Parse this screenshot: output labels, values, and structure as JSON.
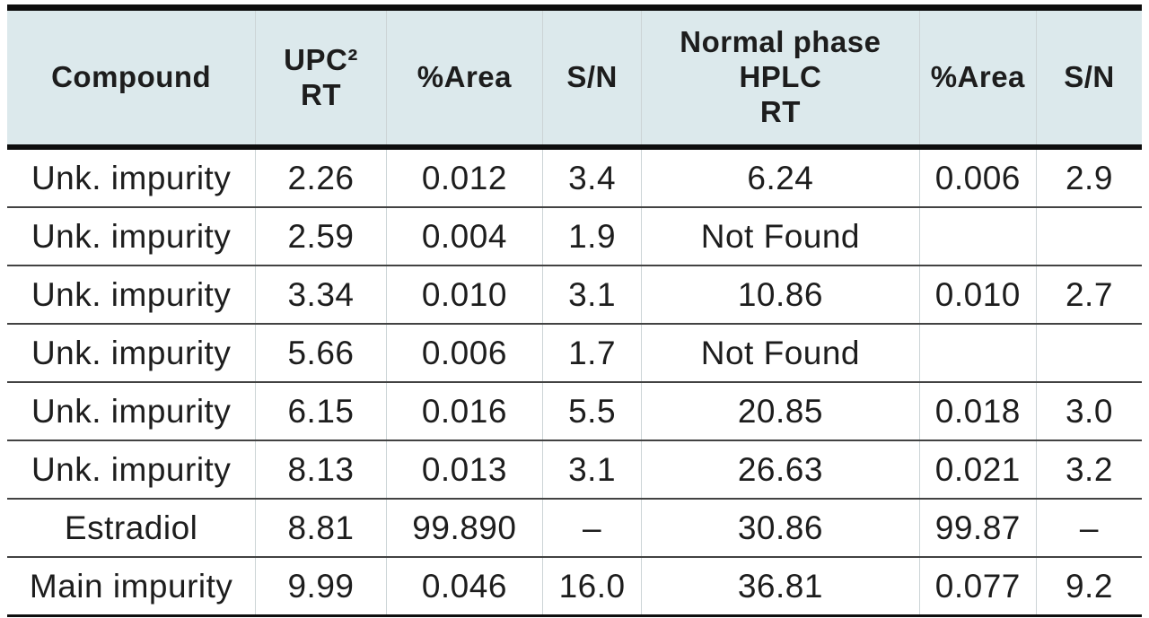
{
  "table": {
    "columns": [
      {
        "id": "compound",
        "label": "Compound"
      },
      {
        "id": "upc2-rt",
        "label": "UPC²\nRT"
      },
      {
        "id": "upc2-area",
        "label": "%Area"
      },
      {
        "id": "upc2-sn",
        "label": "S/N"
      },
      {
        "id": "hplc-rt",
        "label": "Normal phase\nHPLC\nRT"
      },
      {
        "id": "hplc-area",
        "label": "%Area"
      },
      {
        "id": "hplc-sn",
        "label": "S/N"
      }
    ],
    "rows": [
      [
        "Unk. impurity",
        "2.26",
        "0.012",
        "3.4",
        "6.24",
        "0.006",
        "2.9"
      ],
      [
        "Unk. impurity",
        "2.59",
        "0.004",
        "1.9",
        "Not Found",
        "",
        ""
      ],
      [
        "Unk. impurity",
        "3.34",
        "0.010",
        "3.1",
        "10.86",
        "0.010",
        "2.7"
      ],
      [
        "Unk. impurity",
        "5.66",
        "0.006",
        "1.7",
        "Not Found",
        "",
        ""
      ],
      [
        "Unk. impurity",
        "6.15",
        "0.016",
        "5.5",
        "20.85",
        "0.018",
        "3.0"
      ],
      [
        "Unk. impurity",
        "8.13",
        "0.013",
        "3.1",
        "26.63",
        "0.021",
        "3.2"
      ],
      [
        "Estradiol",
        "8.81",
        "99.890",
        "–",
        "30.86",
        "99.87",
        "–"
      ],
      [
        "Main impurity",
        "9.99",
        "0.046",
        "16.0",
        "36.81",
        "0.077",
        "9.2"
      ]
    ],
    "colors": {
      "header_bg": "#dce9ec",
      "text": "#1d1d1d",
      "heavy_line": "#0e0e0e",
      "row_line": "#424242",
      "column_line": "#ccd4d6",
      "page_bg": "#ffffff"
    }
  }
}
